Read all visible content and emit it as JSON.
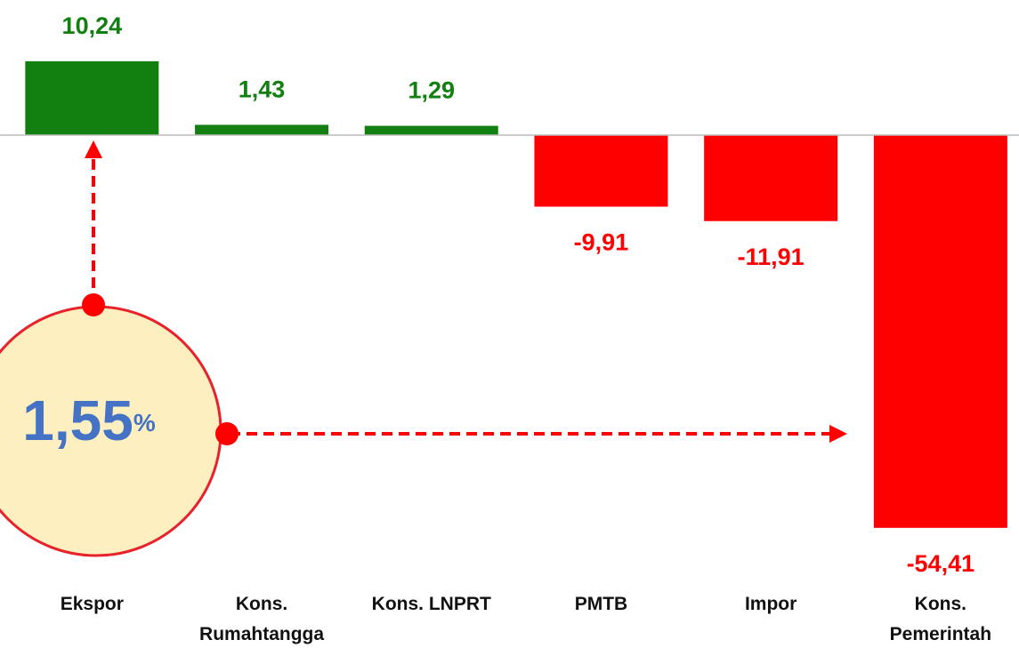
{
  "chart_data": {
    "type": "bar",
    "categories": [
      "Ekspor",
      "Kons.\nRumahtangga",
      "Kons. LNPRT",
      "PMTB",
      "Impor",
      "Kons.\nPemerintah"
    ],
    "values": [
      10.24,
      1.43,
      1.29,
      -9.91,
      -11.91,
      -54.41
    ],
    "value_labels": [
      "10,24",
      "1,43",
      "1,29",
      "-9,91",
      "-11,91",
      "-54,41"
    ],
    "colors": [
      "#118011",
      "#118011",
      "#118011",
      "#ff0000",
      "#ff0000",
      "#ff0000"
    ],
    "ylim": [
      -60,
      12
    ],
    "annotation": {
      "text": "1,55",
      "unit": "%"
    }
  }
}
